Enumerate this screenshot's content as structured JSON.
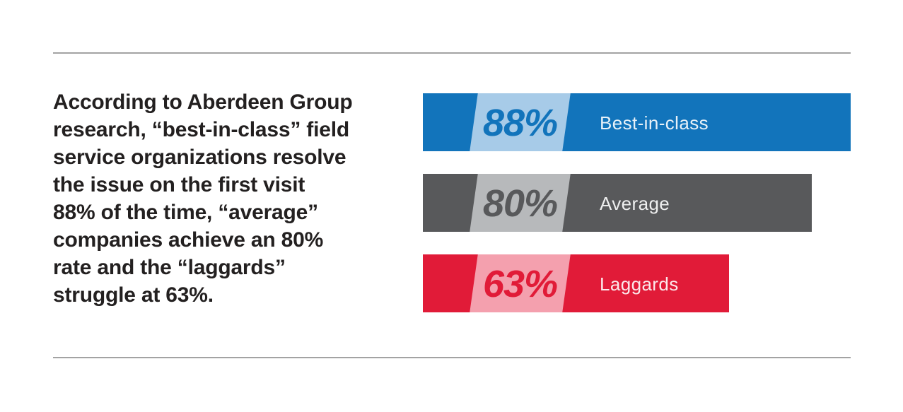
{
  "caption": {
    "lines": [
      "According to Aberdeen Group",
      "research, “best-in-class” field",
      "service organizations resolve",
      "the issue on the first visit",
      "88% of the time, “average”",
      "companies achieve an 80%",
      "rate and the “laggards”",
      "struggle at 63%."
    ]
  },
  "chart_data": {
    "type": "bar",
    "orientation": "horizontal",
    "title": "",
    "xlabel": "",
    "ylabel": "",
    "categories": [
      "Best-in-class",
      "Average",
      "Laggards"
    ],
    "values": [
      88,
      80,
      63
    ],
    "value_labels": [
      "88%",
      "80%",
      "63%"
    ],
    "unit": "%",
    "xlim": [
      0,
      88
    ],
    "gridlines": false,
    "legend": false,
    "bar_colors": [
      "#1274BB",
      "#58595B",
      "#E11B38"
    ],
    "band_colors": [
      "#A7CBE8",
      "#B7B9BB",
      "#F4A0AE"
    ]
  },
  "bars": [
    {
      "label": "Best-in-class",
      "value": 88,
      "value_text": "88%",
      "color": "#1274BB",
      "light_color": "#A7CBE8"
    },
    {
      "label": "Average",
      "value": 80,
      "value_text": "80%",
      "color": "#58595B",
      "light_color": "#B7B9BB"
    },
    {
      "label": "Laggards",
      "value": 63,
      "value_text": "63%",
      "color": "#E11B38",
      "light_color": "#F4A0AE"
    }
  ]
}
